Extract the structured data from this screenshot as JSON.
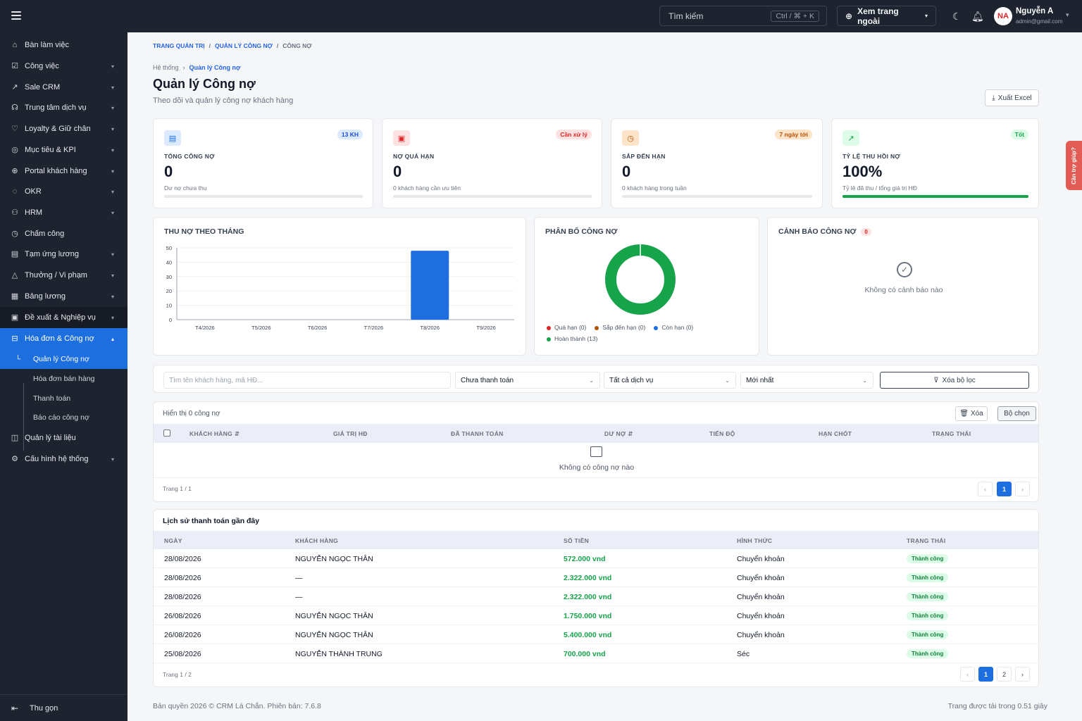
{
  "topbar": {
    "search_placeholder": "Tìm kiếm",
    "shortcut": "Ctrl / ⌘ + K",
    "view_site": "Xem trang ngoài",
    "avatar_initials": "NA",
    "user_name": "Nguyễn A",
    "user_email": "admin@gmail.com"
  },
  "sidebar": {
    "items": [
      {
        "label": "Bàn làm việc",
        "icon": "home-icon"
      },
      {
        "label": "Công việc",
        "icon": "task-icon"
      },
      {
        "label": "Sale CRM",
        "icon": "trend-icon"
      },
      {
        "label": "Trung tâm dịch vụ",
        "icon": "headset-icon"
      },
      {
        "label": "Loyalty & Giữ chân",
        "icon": "heart-icon"
      },
      {
        "label": "Mục tiêu & KPI",
        "icon": "target-icon"
      },
      {
        "label": "Portal khách hàng",
        "icon": "globe-icon"
      },
      {
        "label": "OKR",
        "icon": "okr-icon"
      },
      {
        "label": "HRM",
        "icon": "people-icon"
      },
      {
        "label": "Chấm công",
        "icon": "clock-icon"
      },
      {
        "label": "Tạm ứng lương",
        "icon": "wallet-icon"
      },
      {
        "label": "Thưởng / Vi phạm",
        "icon": "warning-icon"
      },
      {
        "label": "Bảng lương",
        "icon": "payroll-icon"
      },
      {
        "label": "Đề xuất & Nghiệp vụ",
        "icon": "proposal-icon"
      },
      {
        "label": "Hóa đơn & Công nợ",
        "icon": "invoice-icon"
      }
    ],
    "sub_items": [
      {
        "label": "Quản lý Công nợ"
      },
      {
        "label": "Hóa đơn bán hàng"
      },
      {
        "label": "Thanh toán"
      },
      {
        "label": "Báo cáo công nợ"
      }
    ],
    "after_items": [
      {
        "label": "Quản lý tài liệu",
        "icon": "document-icon"
      },
      {
        "label": "Cấu hình hệ thống",
        "icon": "gear-icon"
      }
    ],
    "collapse_label": "Thu gọn"
  },
  "breadcrumb": {
    "items": [
      "TRANG QUẢN TRỊ",
      "QUẢN LÝ CÔNG NỢ",
      "CÔNG NỢ"
    ],
    "sub": [
      "Hệ thống",
      "Quản lý Công nợ"
    ]
  },
  "page": {
    "title": "Quản lý Công nợ",
    "subtitle": "Theo dõi và quản lý công nợ khách hàng",
    "export_label": "Xuất Excel"
  },
  "kpis": [
    {
      "label": "TỔNG CÔNG NỢ",
      "value": "0",
      "desc": "Dư nợ chưa thu",
      "badge": "13 KH",
      "progress": 0
    },
    {
      "label": "NỢ QUÁ HẠN",
      "value": "0",
      "desc": "0 khách hàng cần ưu tiên",
      "badge": "Cần xử lý",
      "progress": 0
    },
    {
      "label": "SẮP ĐẾN HẠN",
      "value": "0",
      "desc": "0 khách hàng trong tuần",
      "badge": "7 ngày tới",
      "progress": 0
    },
    {
      "label": "TỶ LỆ THU HỒI NỢ",
      "value": "100%",
      "desc": "Tỷ lệ đã thu / tổng giá trị HĐ",
      "badge": "Tốt",
      "progress": 1
    }
  ],
  "colors": {
    "primary": "#1d6fe0",
    "success": "#16a34a",
    "danger": "#dc2626",
    "warning": "#b45309",
    "sidebar": "#1e2330"
  },
  "chart_data": [
    {
      "type": "bar",
      "title": "THU NỢ THEO THÁNG",
      "categories": [
        "T4/2026",
        "T5/2026",
        "T6/2026",
        "T7/2026",
        "T8/2026",
        "T9/2026"
      ],
      "values": [
        0,
        0,
        0,
        0,
        48,
        0
      ],
      "ylim": [
        0,
        50
      ],
      "yticks": [
        0,
        10,
        20,
        30,
        40,
        50
      ],
      "grid": true
    },
    {
      "type": "pie",
      "title": "PHÂN BỐ CÔNG NỢ",
      "series": [
        {
          "name": "Quá hạn (0)",
          "value": 0,
          "color": "#dc2626"
        },
        {
          "name": "Sắp đến hạn (0)",
          "value": 0,
          "color": "#b45309"
        },
        {
          "name": "Còn hạn (0)",
          "value": 0,
          "color": "#1d6fe0"
        },
        {
          "name": "Hoàn thành (13)",
          "value": 13,
          "color": "#16a34a"
        }
      ]
    }
  ],
  "alerts": {
    "title": "CẢNH BÁO CÔNG NỢ",
    "count": "0",
    "empty": "Không có cảnh báo nào"
  },
  "filters": {
    "search_placeholder": "Tìm tên khách hàng, mã HĐ...",
    "status": "Chưa thanh toán",
    "service": "Tất cả dịch vụ",
    "sort": "Mới nhất",
    "clear": "Xóa bộ lọc"
  },
  "debt_table": {
    "showing": "Hiển thị 0 công nợ",
    "delete": "Xóa",
    "columns_btn": "Bộ chọn",
    "headers": [
      "KHÁCH HÀNG",
      "GIÁ TRỊ HĐ",
      "ĐÃ THANH TOÁN",
      "DƯ NỢ",
      "TIẾN ĐỘ",
      "HẠN CHÓT",
      "TRẠNG THÁI"
    ],
    "empty": "Không có công nợ nào",
    "page_info": "Trang 1 / 1",
    "current_page": "1"
  },
  "history": {
    "title": "Lịch sử thanh toán gần đây",
    "headers": [
      "NGÀY",
      "KHÁCH HÀNG",
      "SỐ TIỀN",
      "HÌNH THỨC",
      "TRẠNG THÁI"
    ],
    "rows": [
      {
        "date": "28/08/2026",
        "customer": "NGUYỄN NGỌC THÂN",
        "amount": "572.000 vnd",
        "method": "Chuyển khoản",
        "status": "Thành công"
      },
      {
        "date": "28/08/2026",
        "customer": "—",
        "amount": "2.322.000 vnd",
        "method": "Chuyển khoản",
        "status": "Thành công"
      },
      {
        "date": "28/08/2026",
        "customer": "—",
        "amount": "2.322.000 vnd",
        "method": "Chuyển khoản",
        "status": "Thành công"
      },
      {
        "date": "26/08/2026",
        "customer": "NGUYỄN NGỌC THÂN",
        "amount": "1.750.000 vnd",
        "method": "Chuyển khoản",
        "status": "Thành công"
      },
      {
        "date": "26/08/2026",
        "customer": "NGUYỄN NGỌC THÂN",
        "amount": "5.400.000 vnd",
        "method": "Chuyển khoản",
        "status": "Thành công"
      },
      {
        "date": "25/08/2026",
        "customer": "NGUYỄN THÀNH TRUNG",
        "amount": "700.000 vnd",
        "method": "Séc",
        "status": "Thành công"
      }
    ],
    "page_info": "Trang 1 / 2",
    "pages": [
      "1",
      "2"
    ]
  },
  "footer": {
    "copyright": "Bản quyền 2026 © CRM Lá Chắn. Phiên bản: 7.6.8",
    "load_time": "Trang được tải trong 0.51 giây"
  },
  "help_tab": "Cần trợ giúp?"
}
